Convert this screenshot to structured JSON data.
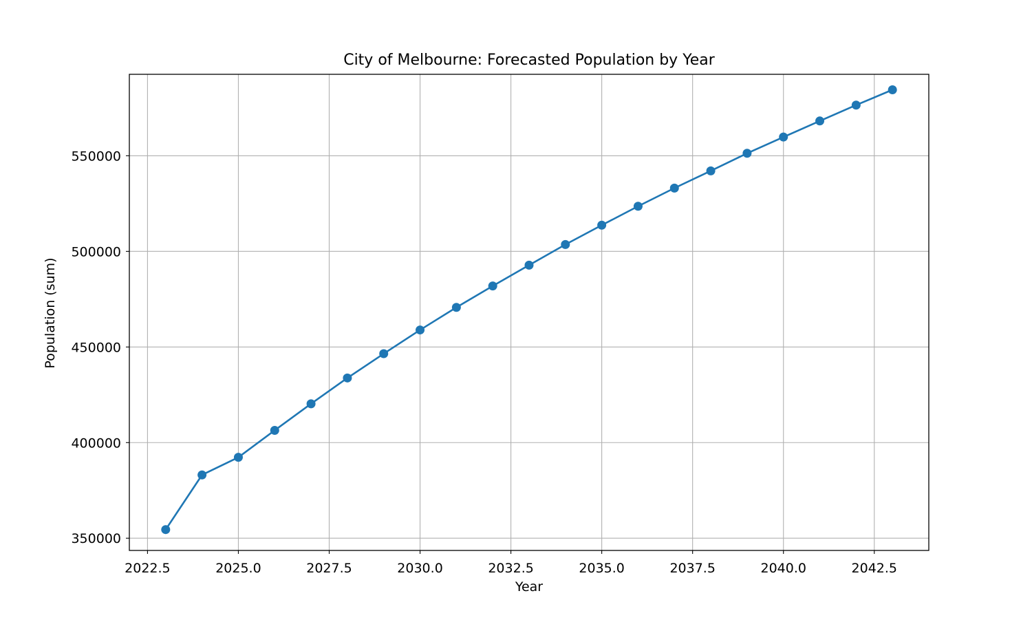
{
  "chart_data": {
    "type": "line",
    "title": "City of Melbourne: Forecasted Population by Year",
    "xlabel": "Year",
    "ylabel": "Population (sum)",
    "xlim": [
      2022.0,
      2044.0
    ],
    "ylim": [
      343600,
      592600
    ],
    "x_ticks": [
      2022.5,
      2025.0,
      2027.5,
      2030.0,
      2032.5,
      2035.0,
      2037.5,
      2040.0,
      2042.5
    ],
    "x_tick_labels": [
      "2022.5",
      "2025.0",
      "2027.5",
      "2030.0",
      "2032.5",
      "2035.0",
      "2037.5",
      "2040.0",
      "2042.5"
    ],
    "y_ticks": [
      350000,
      400000,
      450000,
      500000,
      550000
    ],
    "y_tick_labels": [
      "350000",
      "400000",
      "450000",
      "500000",
      "550000"
    ],
    "grid": true,
    "line_color": "#1f77b4",
    "marker": "circle",
    "x": [
      2023,
      2024,
      2025,
      2026,
      2027,
      2028,
      2029,
      2030,
      2031,
      2032,
      2033,
      2034,
      2035,
      2036,
      2037,
      2038,
      2039,
      2040,
      2041,
      2042,
      2043
    ],
    "y": [
      354500,
      383100,
      392300,
      406400,
      420300,
      433800,
      446500,
      458900,
      470700,
      481900,
      492800,
      503600,
      513700,
      523600,
      533100,
      542100,
      551300,
      559800,
      568200,
      576500,
      584500
    ]
  }
}
